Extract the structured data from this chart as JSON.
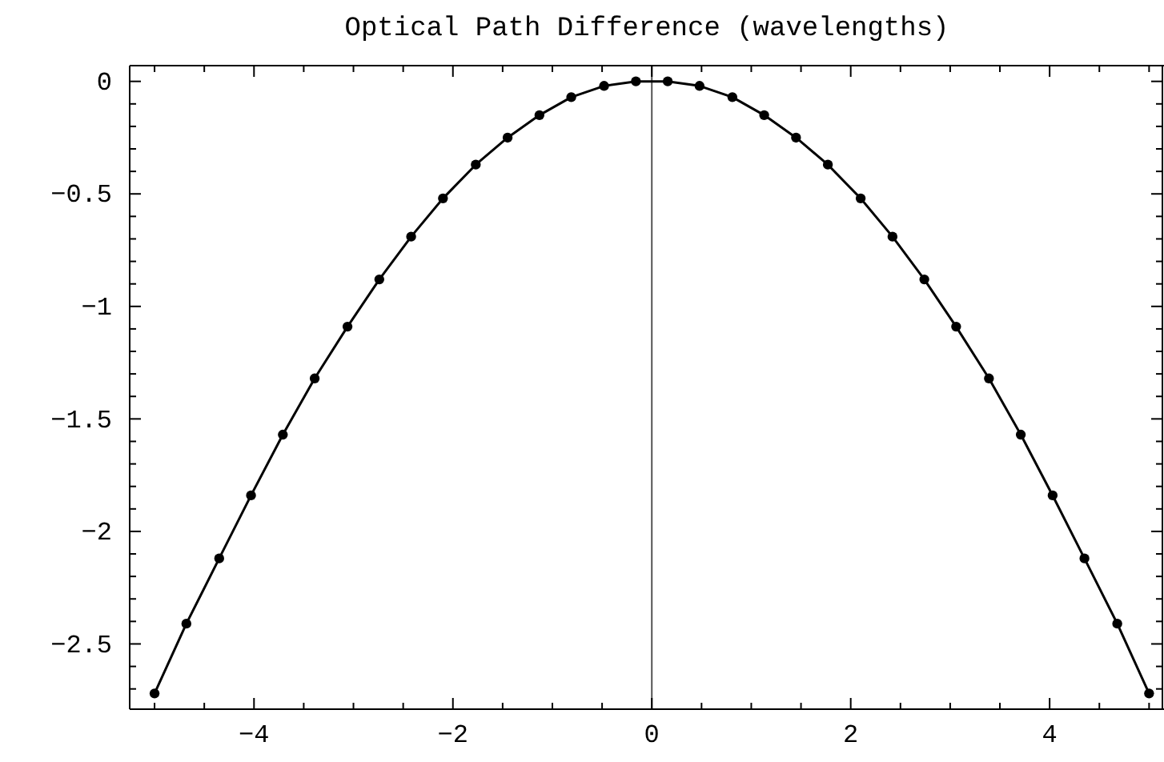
{
  "chart_data": {
    "type": "line",
    "title": "Optical Path Difference (wavelengths)",
    "x": [
      -5.0,
      -4.68,
      -4.35,
      -4.03,
      -3.71,
      -3.39,
      -3.06,
      -2.74,
      -2.42,
      -2.1,
      -1.77,
      -1.45,
      -1.13,
      -0.81,
      -0.48,
      -0.16,
      0.16,
      0.48,
      0.81,
      1.13,
      1.45,
      1.77,
      2.1,
      2.42,
      2.74,
      3.06,
      3.39,
      3.71,
      4.03,
      4.35,
      4.68,
      5.0
    ],
    "series": [
      {
        "color": "#000000",
        "values": [
          -2.72,
          -2.41,
          -2.12,
          -1.84,
          -1.57,
          -1.32,
          -1.09,
          -0.88,
          -0.69,
          -0.52,
          -0.37,
          -0.25,
          -0.15,
          -0.07,
          -0.02,
          0.0,
          0.0,
          -0.02,
          -0.07,
          -0.15,
          -0.25,
          -0.37,
          -0.52,
          -0.69,
          -0.88,
          -1.09,
          -1.32,
          -1.57,
          -1.84,
          -2.12,
          -2.41,
          -2.72
        ]
      }
    ],
    "marker": "circle",
    "line_style": "solid",
    "grid": false,
    "xlim": [
      -5.25,
      5.15
    ],
    "ylim": [
      -2.79,
      0.07
    ],
    "xticks": [
      {
        "value": -5,
        "label": null
      },
      {
        "value": -4.5,
        "label": null
      },
      -4,
      {
        "value": -3.5,
        "label": null
      },
      {
        "value": -3,
        "label": null
      },
      {
        "value": -2.5,
        "label": null
      },
      -2,
      {
        "value": -1.5,
        "label": null
      },
      {
        "value": -1,
        "label": null
      },
      {
        "value": -0.5,
        "label": null
      },
      0,
      {
        "value": 0.5,
        "label": null
      },
      {
        "value": 1,
        "label": null
      },
      {
        "value": 1.5,
        "label": null
      },
      2,
      {
        "value": 2.5,
        "label": null
      },
      {
        "value": 3,
        "label": null
      },
      {
        "value": 3.5,
        "label": null
      },
      4,
      {
        "value": 4.5,
        "label": null
      },
      {
        "value": 5,
        "label": null
      }
    ],
    "yticks": [
      0,
      {
        "value": -0.1,
        "label": null
      },
      {
        "value": -0.2,
        "label": null
      },
      {
        "value": -0.3,
        "label": null
      },
      {
        "value": -0.4,
        "label": null
      },
      -0.5,
      {
        "value": -0.6,
        "label": null
      },
      {
        "value": -0.7,
        "label": null
      },
      {
        "value": -0.8,
        "label": null
      },
      {
        "value": -0.9,
        "label": null
      },
      -1,
      {
        "value": -1.1,
        "label": null
      },
      {
        "value": -1.2,
        "label": null
      },
      {
        "value": -1.3,
        "label": null
      },
      {
        "value": -1.4,
        "label": null
      },
      -1.5,
      {
        "value": -1.6,
        "label": null
      },
      {
        "value": -1.7,
        "label": null
      },
      {
        "value": -1.8,
        "label": null
      },
      {
        "value": -1.9,
        "label": null
      },
      -2,
      {
        "value": -2.1,
        "label": null
      },
      {
        "value": -2.2,
        "label": null
      },
      {
        "value": -2.3,
        "label": null
      },
      {
        "value": -2.4,
        "label": null
      },
      -2.5,
      {
        "value": -2.6,
        "label": null
      },
      {
        "value": -2.7,
        "label": null
      }
    ],
    "ref_lines": [
      {
        "axis": "x",
        "value": 0,
        "color": "#555555"
      }
    ]
  }
}
